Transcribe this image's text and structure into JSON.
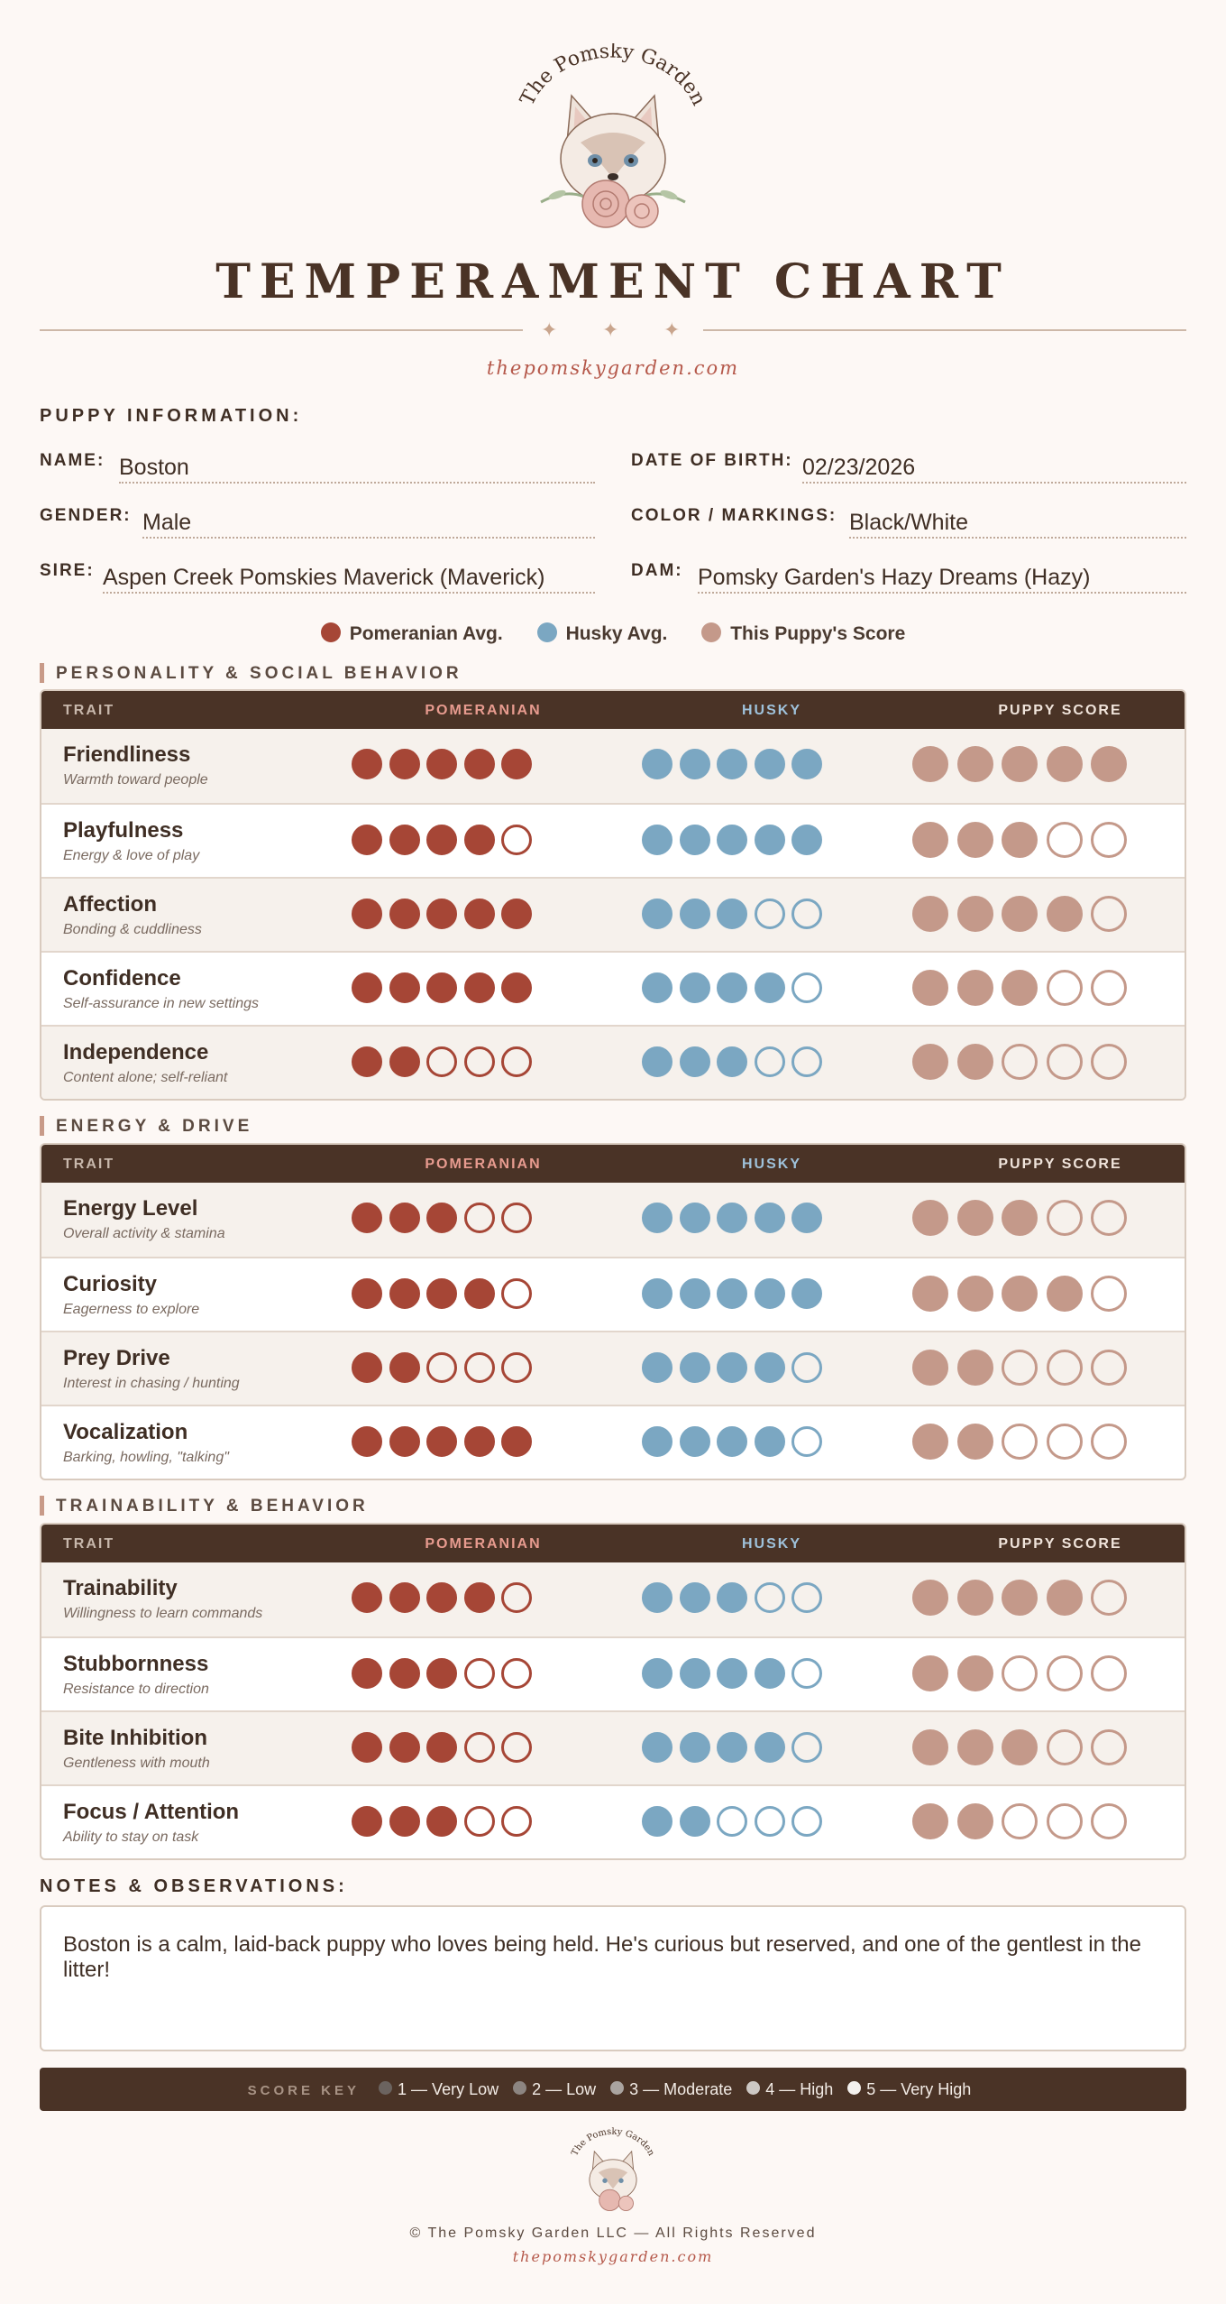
{
  "brand": {
    "logo_text": "The Pomsky Garden",
    "title": "TEMPERAMENT CHART",
    "website": "thepomskygarden.com"
  },
  "puppy_info": {
    "heading": "PUPPY INFORMATION:",
    "name_label": "NAME:",
    "name": "Boston",
    "dob_label": "DATE OF BIRTH:",
    "dob": "02/23/2026",
    "gender_label": "GENDER:",
    "gender": "Male",
    "color_label": "COLOR / MARKINGS:",
    "color": "Black/White",
    "sire_label": "SIRE:",
    "sire": "Aspen Creek Pomskies Maverick (Maverick)",
    "dam_label": "DAM:",
    "dam": "Pomsky Garden's Hazy Dreams (Hazy)"
  },
  "legend": {
    "pomeranian": "Pomeranian Avg.",
    "husky": "Husky Avg.",
    "puppy": "This Puppy's Score"
  },
  "colors": {
    "pomeranian": "#a64636",
    "husky": "#7ba7c2",
    "puppy": "#c4998a",
    "header_bg": "#4a3326"
  },
  "table_headers": {
    "trait": "TRAIT",
    "pomeranian": "POMERANIAN",
    "husky": "HUSKY",
    "puppy": "PUPPY SCORE"
  },
  "categories": [
    {
      "title": "PERSONALITY & SOCIAL BEHAVIOR",
      "traits": [
        {
          "name": "Friendliness",
          "desc": "Warmth toward people",
          "pomeranian": 5,
          "husky": 5,
          "puppy": 5
        },
        {
          "name": "Playfulness",
          "desc": "Energy & love of play",
          "pomeranian": 4,
          "husky": 5,
          "puppy": 3
        },
        {
          "name": "Affection",
          "desc": "Bonding & cuddliness",
          "pomeranian": 5,
          "husky": 3,
          "puppy": 4
        },
        {
          "name": "Confidence",
          "desc": "Self-assurance in new settings",
          "pomeranian": 5,
          "husky": 4,
          "puppy": 3
        },
        {
          "name": "Independence",
          "desc": "Content alone; self-reliant",
          "pomeranian": 2,
          "husky": 3,
          "puppy": 2
        }
      ]
    },
    {
      "title": "ENERGY & DRIVE",
      "traits": [
        {
          "name": "Energy Level",
          "desc": "Overall activity & stamina",
          "pomeranian": 3,
          "husky": 5,
          "puppy": 3
        },
        {
          "name": "Curiosity",
          "desc": "Eagerness to explore",
          "pomeranian": 4,
          "husky": 5,
          "puppy": 4
        },
        {
          "name": "Prey Drive",
          "desc": "Interest in chasing / hunting",
          "pomeranian": 2,
          "husky": 4,
          "puppy": 2
        },
        {
          "name": "Vocalization",
          "desc": "Barking, howling, \"talking\"",
          "pomeranian": 5,
          "husky": 4,
          "puppy": 2
        }
      ]
    },
    {
      "title": "TRAINABILITY & BEHAVIOR",
      "traits": [
        {
          "name": "Trainability",
          "desc": "Willingness to learn commands",
          "pomeranian": 4,
          "husky": 3,
          "puppy": 4
        },
        {
          "name": "Stubbornness",
          "desc": "Resistance to direction",
          "pomeranian": 3,
          "husky": 4,
          "puppy": 2
        },
        {
          "name": "Bite Inhibition",
          "desc": "Gentleness with mouth",
          "pomeranian": 3,
          "husky": 4,
          "puppy": 3
        },
        {
          "name": "Focus / Attention",
          "desc": "Ability to stay on task",
          "pomeranian": 3,
          "husky": 2,
          "puppy": 2
        }
      ]
    }
  ],
  "notes": {
    "heading": "NOTES & OBSERVATIONS:",
    "text": "Boston is a calm, laid-back puppy who loves being held. He's curious but reserved, and one of the gentlest in the litter!"
  },
  "score_key": {
    "title": "SCORE KEY",
    "items": [
      {
        "label": "1 — Very Low",
        "color": "#6b635f"
      },
      {
        "label": "2 — Low",
        "color": "#8c8581"
      },
      {
        "label": "3 — Moderate",
        "color": "#aaa4a0"
      },
      {
        "label": "4 — High",
        "color": "#cdc8c4"
      },
      {
        "label": "5 — Very High",
        "color": "#f4f1ee"
      }
    ]
  },
  "footer": {
    "copyright": "© The Pomsky Garden LLC — All Rights Reserved",
    "website": "thepomskygarden.com"
  }
}
